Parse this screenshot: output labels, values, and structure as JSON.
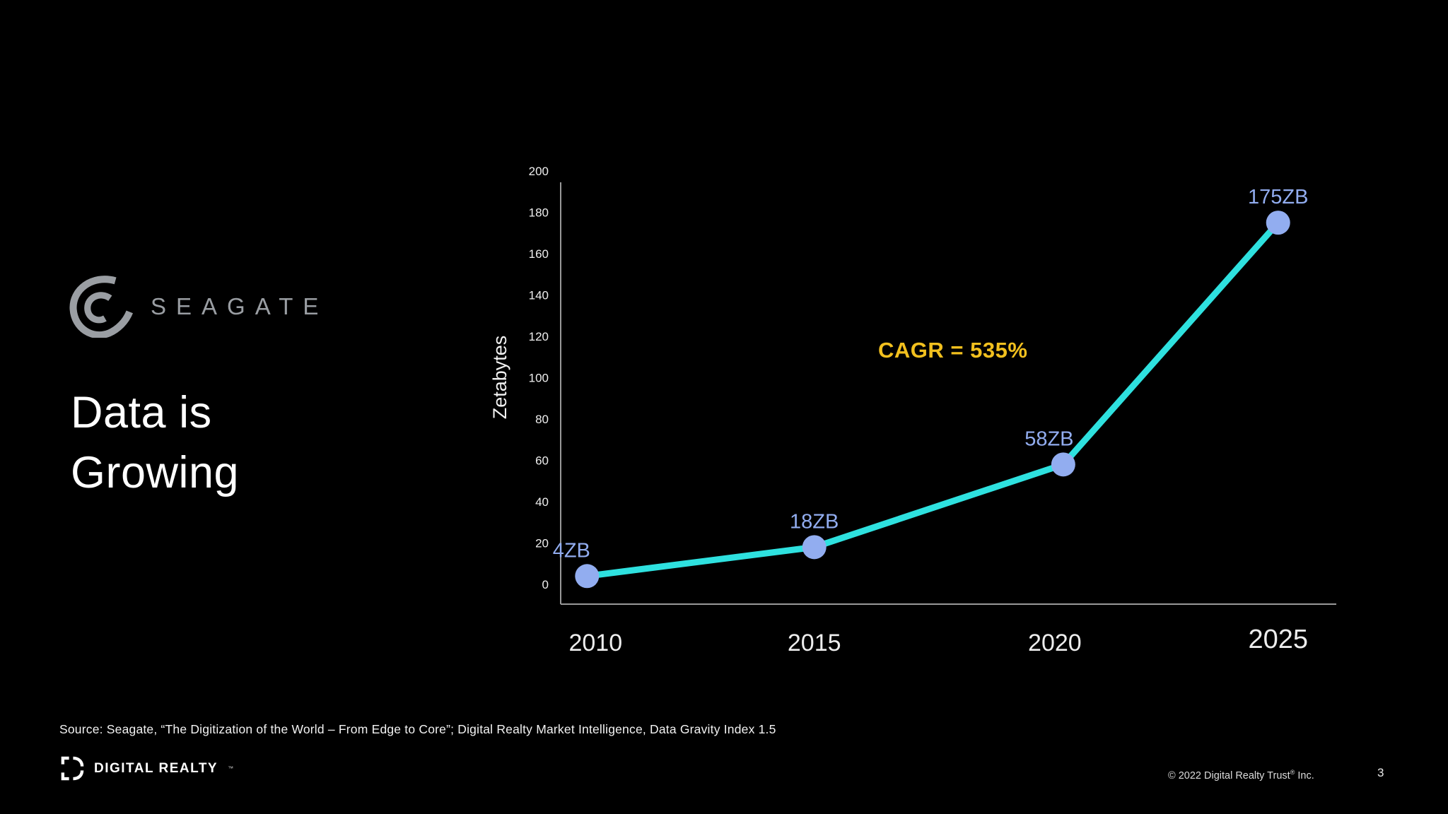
{
  "slide": {
    "background": "#000000",
    "page_number": "3",
    "source_text": "Source: Seagate, “The Digitization of the World – From Edge to Core”; Digital Realty Market Intelligence, Data Gravity Index 1.5",
    "copyright_prefix": "© 2022 Digital Realty Trust",
    "copyright_reg": "®",
    "copyright_suffix": " Inc."
  },
  "branding": {
    "seagate_label": "SEAGATE",
    "seagate_color": "#9A9EA3",
    "footer_logo_label": "DIGITAL REALTY",
    "footer_logo_tm": "™"
  },
  "title": {
    "line1": "Data is",
    "line2": "Growing"
  },
  "annotation": {
    "cagr_label": "CAGR = 535%",
    "color": "#F2C01E"
  },
  "chart_data": {
    "type": "line",
    "title": "",
    "categories": [
      "2010",
      "2015",
      "2020",
      "2025"
    ],
    "values": [
      4,
      18,
      58,
      175
    ],
    "point_labels": [
      "4ZB",
      "18ZB",
      "58ZB",
      "175ZB"
    ],
    "xlabel": "",
    "ylabel": "Zetabytes",
    "ylim": [
      0,
      200
    ],
    "yticks": [
      0,
      20,
      40,
      60,
      80,
      100,
      120,
      140,
      160,
      180,
      200
    ],
    "grid": false,
    "legend": "none",
    "annotation": "CAGR = 535%",
    "line_color": "#2EE1DF",
    "marker_color": "#92ADF0",
    "axis_color": "#999999",
    "tick_text_color": "#EFEFEF"
  }
}
